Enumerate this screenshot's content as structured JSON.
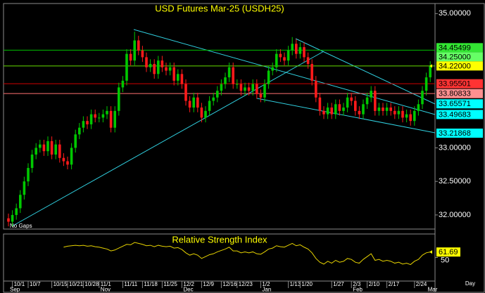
{
  "chart_data": {
    "type": "candlestick",
    "title": "USD Futures Mar-25 (USDH25)",
    "note": "No Gaps",
    "period": "Day",
    "categories": [
      null,
      "10/1",
      null,
      null,
      null,
      "10/7",
      null,
      null,
      null,
      null,
      null,
      "10/15",
      null,
      null,
      null,
      "10/21",
      null,
      null,
      null,
      "10/28",
      null,
      null,
      null,
      "11/1",
      null,
      null,
      null,
      null,
      null,
      "11/11",
      null,
      null,
      null,
      null,
      "11/18",
      null,
      null,
      null,
      null,
      "11/25",
      null,
      null,
      null,
      null,
      "12/2",
      null,
      null,
      null,
      null,
      "12/9",
      null,
      null,
      null,
      null,
      "12/16",
      null,
      null,
      null,
      "12/23",
      null,
      null,
      null,
      null,
      null,
      "1/2",
      null,
      null,
      null,
      null,
      null,
      null,
      "1/13",
      null,
      null,
      "1/20",
      null,
      null,
      null,
      null,
      null,
      null,
      null,
      "1/27",
      null,
      null,
      null,
      null,
      "2/3",
      null,
      null,
      null,
      "2/10",
      null,
      null,
      null,
      null,
      "2/17",
      null,
      null,
      null,
      null,
      null,
      null,
      "2/24",
      null,
      null,
      null,
      null
    ],
    "months": [
      "Sep",
      null,
      null,
      null,
      null,
      null,
      null,
      null,
      null,
      null,
      null,
      null,
      null,
      null,
      null,
      null,
      null,
      null,
      null,
      null,
      null,
      null,
      null,
      "Nov",
      null,
      null,
      null,
      null,
      null,
      null,
      null,
      null,
      null,
      null,
      null,
      null,
      null,
      null,
      null,
      null,
      null,
      null,
      null,
      null,
      "Dec",
      null,
      null,
      null,
      null,
      null,
      null,
      null,
      null,
      null,
      null,
      null,
      null,
      null,
      null,
      null,
      null,
      null,
      null,
      null,
      "Jan",
      null,
      null,
      null,
      null,
      null,
      null,
      null,
      null,
      null,
      null,
      null,
      null,
      null,
      null,
      null,
      null,
      null,
      null,
      null,
      null,
      null,
      null,
      "Feb",
      null,
      null,
      null,
      null,
      null,
      null,
      null,
      null,
      null,
      null,
      null,
      null,
      null,
      null,
      null,
      null,
      null,
      null,
      "Mar",
      null
    ],
    "open": [
      31.95,
      31.9,
      32.0,
      32.1,
      32.3,
      32.5,
      32.7,
      32.9,
      33.0,
      33.05,
      32.95,
      33.1,
      32.9,
      33.05,
      32.85,
      32.8,
      32.75,
      33.0,
      33.2,
      33.3,
      33.4,
      33.35,
      33.5,
      33.45,
      33.45,
      33.5,
      33.55,
      33.3,
      33.55,
      33.9,
      34.0,
      34.4,
      34.3,
      34.6,
      34.45,
      34.35,
      34.2,
      34.25,
      34.1,
      34.3,
      34.2,
      34.15,
      34.2,
      34.0,
      34.1,
      33.95,
      33.7,
      33.6,
      33.75,
      33.6,
      33.45,
      33.55,
      33.7,
      33.75,
      33.85,
      33.95,
      34.05,
      34.2,
      33.95,
      33.95,
      33.85,
      33.9,
      33.85,
      33.95,
      33.8,
      33.75,
      33.95,
      34.15,
      34.2,
      34.4,
      34.35,
      34.3,
      34.45,
      34.55,
      34.4,
      34.5,
      34.35,
      34.25,
      34.0,
      33.75,
      33.55,
      33.5,
      33.6,
      33.5,
      33.65,
      33.55,
      33.6,
      33.75,
      33.7,
      33.55,
      33.5,
      33.65,
      33.75,
      33.85,
      33.55,
      33.6,
      33.55,
      33.6,
      33.55,
      33.5,
      33.55,
      33.45,
      33.5,
      33.4,
      33.55,
      33.65,
      33.85,
      34.05
    ],
    "high": [
      32.02,
      32.07,
      32.17,
      32.37,
      32.57,
      32.77,
      32.97,
      33.07,
      33.12,
      33.12,
      33.17,
      33.17,
      33.12,
      33.12,
      32.92,
      32.87,
      33.07,
      33.27,
      33.37,
      33.47,
      33.47,
      33.57,
      33.57,
      33.52,
      33.57,
      33.62,
      33.62,
      33.62,
      33.97,
      34.07,
      34.47,
      34.47,
      34.73,
      34.67,
      34.52,
      34.42,
      34.32,
      34.32,
      34.37,
      34.37,
      34.27,
      34.27,
      34.27,
      34.17,
      34.17,
      34.02,
      33.77,
      33.82,
      33.82,
      33.67,
      33.62,
      33.77,
      33.82,
      33.92,
      34.02,
      34.12,
      34.27,
      34.27,
      34.02,
      34.02,
      33.97,
      33.97,
      34.02,
      34.02,
      33.87,
      34.02,
      34.22,
      34.27,
      34.47,
      34.47,
      34.42,
      34.52,
      34.65,
      34.62,
      34.57,
      34.57,
      34.42,
      34.32,
      34.07,
      33.82,
      33.62,
      33.67,
      33.67,
      33.72,
      33.72,
      33.67,
      33.82,
      33.82,
      33.77,
      33.62,
      33.72,
      33.82,
      33.92,
      33.92,
      33.67,
      33.67,
      33.67,
      33.67,
      33.62,
      33.62,
      33.62,
      33.57,
      33.57,
      33.62,
      33.72,
      33.92,
      34.12,
      34.29
    ],
    "low": [
      31.83,
      31.83,
      31.93,
      32.03,
      32.23,
      32.43,
      32.63,
      32.83,
      32.93,
      32.88,
      32.88,
      32.83,
      32.83,
      32.78,
      32.73,
      32.68,
      32.68,
      32.93,
      33.13,
      33.23,
      33.28,
      33.28,
      33.38,
      33.38,
      33.38,
      33.43,
      33.23,
      33.23,
      33.48,
      33.83,
      33.93,
      34.23,
      34.23,
      34.38,
      34.28,
      34.13,
      34.13,
      34.03,
      34.03,
      34.13,
      34.08,
      34.08,
      33.93,
      33.93,
      33.88,
      33.63,
      33.53,
      33.53,
      33.53,
      33.38,
      33.38,
      33.48,
      33.63,
      33.68,
      33.78,
      33.88,
      33.98,
      33.88,
      33.88,
      33.78,
      33.78,
      33.78,
      33.78,
      33.73,
      33.68,
      33.68,
      33.88,
      34.08,
      34.13,
      34.28,
      34.23,
      34.23,
      34.38,
      34.33,
      34.33,
      34.28,
      34.18,
      33.93,
      33.68,
      33.48,
      33.43,
      33.43,
      33.43,
      33.43,
      33.48,
      33.48,
      33.53,
      33.63,
      33.48,
      33.43,
      33.43,
      33.58,
      33.68,
      33.48,
      33.48,
      33.48,
      33.48,
      33.48,
      33.43,
      33.43,
      33.38,
      33.38,
      33.33,
      33.33,
      33.48,
      33.58,
      33.78,
      33.98
    ],
    "close": [
      31.9,
      32.0,
      32.1,
      32.3,
      32.5,
      32.7,
      32.9,
      33.0,
      33.05,
      32.95,
      33.1,
      32.9,
      33.05,
      32.85,
      32.8,
      32.75,
      33.0,
      33.2,
      33.3,
      33.4,
      33.35,
      33.5,
      33.45,
      33.45,
      33.5,
      33.55,
      33.3,
      33.55,
      33.9,
      34.0,
      34.4,
      34.3,
      34.6,
      34.45,
      34.35,
      34.2,
      34.25,
      34.1,
      34.3,
      34.2,
      34.15,
      34.2,
      34.0,
      34.1,
      33.95,
      33.7,
      33.6,
      33.75,
      33.6,
      33.45,
      33.55,
      33.7,
      33.75,
      33.85,
      33.95,
      34.05,
      34.2,
      33.95,
      33.95,
      33.85,
      33.9,
      33.85,
      33.95,
      33.8,
      33.75,
      33.95,
      34.15,
      34.2,
      34.4,
      34.35,
      34.3,
      34.45,
      34.55,
      34.4,
      34.5,
      34.35,
      34.25,
      34.0,
      33.75,
      33.55,
      33.5,
      33.6,
      33.5,
      33.65,
      33.55,
      33.6,
      33.75,
      33.7,
      33.55,
      33.5,
      33.65,
      33.75,
      33.85,
      33.55,
      33.6,
      33.55,
      33.6,
      33.55,
      33.5,
      33.55,
      33.45,
      33.5,
      33.4,
      33.55,
      33.65,
      33.85,
      34.05,
      34.22
    ],
    "up_color": "#00c800",
    "down_color": "#ff1a1a",
    "ylim": [
      31.79,
      35.15
    ],
    "yticks": [
      {
        "value": 35,
        "label": "35.00000"
      },
      {
        "value": 33,
        "label": "33.00000"
      },
      {
        "value": 32.5,
        "label": "32.50000"
      },
      {
        "value": 32,
        "label": "32.00000"
      }
    ],
    "levels": [
      {
        "value": 34.45499,
        "color": "#33e633",
        "line": "#00c000"
      },
      {
        "value": 34.25,
        "label": "34.25000",
        "color": "#66ff66"
      },
      {
        "value": 34.22,
        "label": "34.22000",
        "color": "#ffff00",
        "line": "#66dd00",
        "current": true
      },
      {
        "value": 33.95501,
        "color": "#ff3333",
        "line": "#d00000"
      },
      {
        "value": 33.80833,
        "color": "#ff9090",
        "line": "#ff7070"
      },
      {
        "value": 33.65571,
        "color": "#00ffff"
      },
      {
        "value": 33.49683,
        "color": "#00ffff"
      },
      {
        "value": 33.21868,
        "color": "#00ffff"
      }
    ],
    "indicator": {
      "title": "Relative Strength Index",
      "color": "#e6d200",
      "ylim": [
        0,
        100
      ],
      "yticks": [
        50
      ],
      "values": [
        null,
        null,
        null,
        null,
        null,
        null,
        null,
        null,
        null,
        null,
        null,
        null,
        null,
        null,
        72,
        74,
        75,
        76,
        75,
        76,
        74,
        75,
        73,
        72,
        70,
        68,
        64,
        66,
        70,
        74,
        78,
        77,
        82,
        80,
        78,
        75,
        76,
        73,
        76,
        74,
        73,
        74,
        70,
        71,
        67,
        60,
        55,
        58,
        55,
        48,
        52,
        56,
        58,
        62,
        65,
        68,
        72,
        64,
        64,
        60,
        62,
        60,
        62,
        58,
        57,
        62,
        68,
        70,
        75,
        73,
        72,
        76,
        80,
        75,
        77,
        72,
        68,
        60,
        48,
        40,
        36,
        42,
        38,
        44,
        40,
        42,
        48,
        46,
        40,
        38,
        46,
        52,
        58,
        44,
        46,
        42,
        44,
        42,
        38,
        40,
        36,
        38,
        35,
        42,
        46,
        55,
        60,
        61.69
      ]
    }
  }
}
